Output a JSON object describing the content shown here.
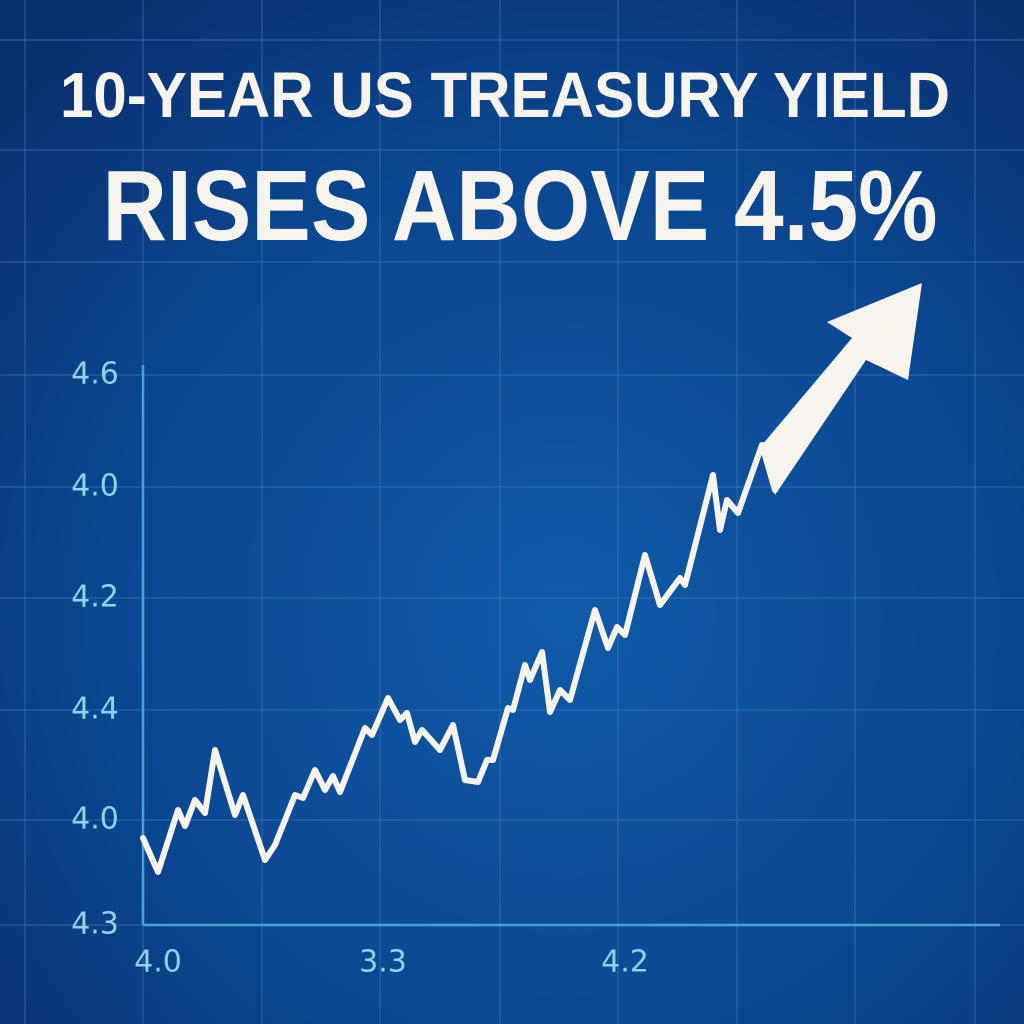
{
  "poster": {
    "title_lines": [
      "10-YEAR US TREASURY YIELD",
      "RISES ABOVE 4.5%"
    ],
    "y_labels": [
      "4.6",
      "4.0",
      "4.2",
      "4.4",
      "4.0",
      "4.3"
    ],
    "x_labels": [
      "4.0",
      "3.3",
      "4.2"
    ]
  }
}
